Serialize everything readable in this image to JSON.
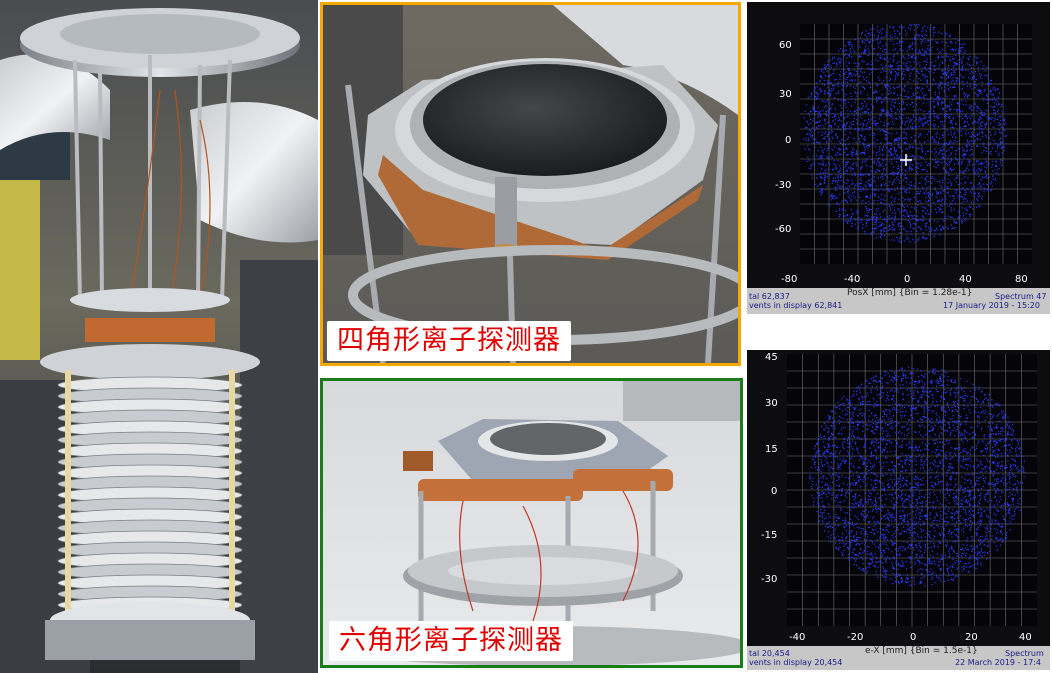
{
  "panels": {
    "top_middle": {
      "label": "四角形离子探测器",
      "border_color": "#f5a800"
    },
    "bottom_middle": {
      "label": "六角形离子探测器",
      "border_color": "#1a7d1a"
    }
  },
  "top_right_plot": {
    "y_ticks": [
      "60",
      "30",
      "0",
      "-30",
      "-60"
    ],
    "x_ticks": [
      "-80",
      "-40",
      "0",
      "40",
      "80"
    ],
    "xlabel": "PosX [mm] {Bin = 1.28e-1}",
    "footer_left_1": "tal 62,837",
    "footer_left_2": "vents in display 62,841",
    "footer_right_1": "Spectrum 47",
    "footer_right_2": "17 January 2019 - 15:20",
    "dot_color": "#2b3cff"
  },
  "bottom_right_plot": {
    "y_ticks": [
      "45",
      "30",
      "15",
      "0",
      "-15",
      "-30"
    ],
    "x_ticks": [
      "-40",
      "-20",
      "0",
      "20",
      "40"
    ],
    "xlabel": "e-X [mm] {Bin = 1.5e-1}",
    "footer_left_1": "tal 20,454",
    "footer_left_2": "vents in display 20,454",
    "footer_right_1": "Spectrum",
    "footer_right_2": "22 March 2019 - 17:4",
    "dot_color": "#2b3cff"
  }
}
